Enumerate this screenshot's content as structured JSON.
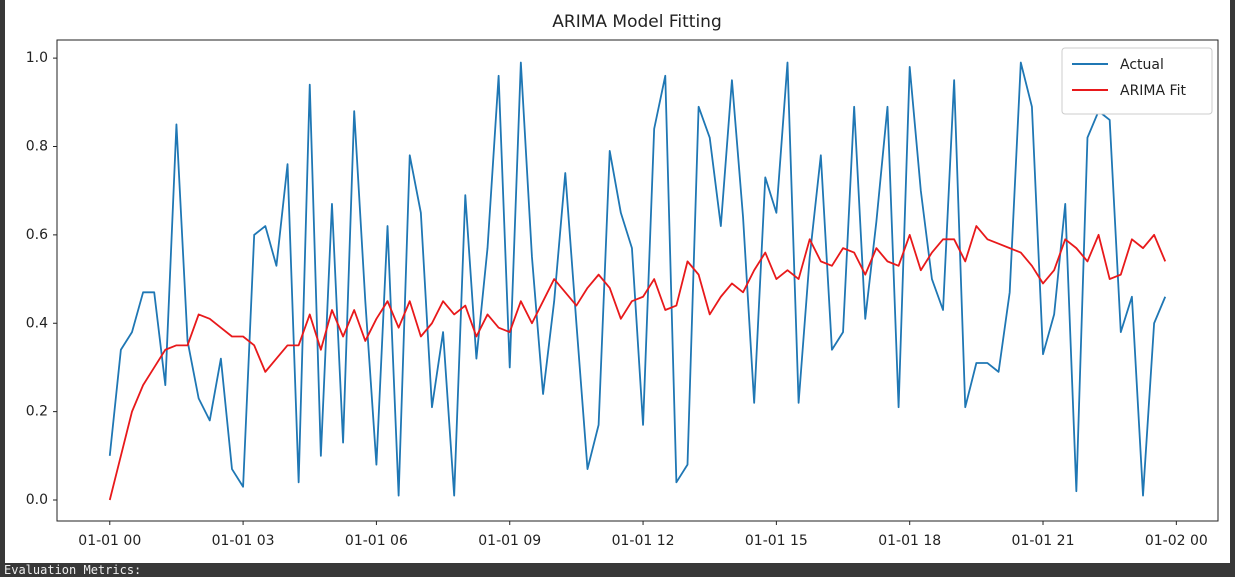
{
  "chart_data": {
    "type": "line",
    "title": "ARIMA Model Fitting",
    "x": [
      0,
      0.25,
      0.5,
      0.75,
      1,
      1.25,
      1.5,
      1.75,
      2,
      2.25,
      2.5,
      2.75,
      3,
      3.25,
      3.5,
      3.75,
      4,
      4.25,
      4.5,
      4.75,
      5,
      5.25,
      5.5,
      5.75,
      6,
      6.25,
      6.5,
      6.75,
      7,
      7.25,
      7.5,
      7.75,
      8,
      8.25,
      8.5,
      8.75,
      9,
      9.25,
      9.5,
      9.75,
      10,
      10.25,
      10.5,
      10.75,
      11,
      11.25,
      11.5,
      11.75,
      12,
      12.25,
      12.5,
      12.75,
      13,
      13.25,
      13.5,
      13.75,
      14,
      14.25,
      14.5,
      14.75,
      15,
      15.25,
      15.5,
      15.75,
      16,
      16.25,
      16.5,
      16.75,
      17,
      17.25,
      17.5,
      17.75,
      18,
      18.25,
      18.5,
      18.75,
      19,
      19.25,
      19.5,
      19.75,
      20,
      20.25,
      20.5,
      20.75,
      21,
      21.25,
      21.5,
      21.75,
      22,
      22.25,
      22.5,
      22.75,
      23,
      23.25,
      23.5,
      23.75
    ],
    "series": [
      {
        "name": "Actual",
        "color": "#1f77b4",
        "values": [
          0.1,
          0.34,
          0.38,
          0.47,
          0.47,
          0.26,
          0.85,
          0.36,
          0.23,
          0.18,
          0.32,
          0.07,
          0.03,
          0.6,
          0.62,
          0.53,
          0.76,
          0.04,
          0.94,
          0.1,
          0.67,
          0.13,
          0.88,
          0.45,
          0.08,
          0.62,
          0.01,
          0.78,
          0.65,
          0.21,
          0.38,
          0.01,
          0.69,
          0.32,
          0.57,
          0.96,
          0.3,
          0.99,
          0.55,
          0.24,
          0.45,
          0.74,
          0.4,
          0.07,
          0.17,
          0.79,
          0.65,
          0.57,
          0.17,
          0.84,
          0.96,
          0.04,
          0.08,
          0.89,
          0.82,
          0.62,
          0.95,
          0.64,
          0.22,
          0.73,
          0.65,
          0.99,
          0.22,
          0.55,
          0.78,
          0.34,
          0.38,
          0.89,
          0.41,
          0.63,
          0.89,
          0.21,
          0.98,
          0.7,
          0.5,
          0.43,
          0.95,
          0.21,
          0.31,
          0.31,
          0.29,
          0.47,
          0.99,
          0.89,
          0.33,
          0.42,
          0.67,
          0.02,
          0.82,
          0.88,
          0.86,
          0.38,
          0.46,
          0.01,
          0.4,
          0.46
        ]
      },
      {
        "name": "ARIMA Fit",
        "color": "#e8191b",
        "values": [
          0.0,
          0.1,
          0.2,
          0.26,
          0.3,
          0.34,
          0.35,
          0.35,
          0.42,
          0.41,
          0.39,
          0.37,
          0.37,
          0.35,
          0.29,
          0.32,
          0.35,
          0.35,
          0.42,
          0.34,
          0.43,
          0.37,
          0.43,
          0.36,
          0.41,
          0.45,
          0.39,
          0.45,
          0.37,
          0.4,
          0.45,
          0.42,
          0.44,
          0.37,
          0.42,
          0.39,
          0.38,
          0.45,
          0.4,
          0.45,
          0.5,
          0.47,
          0.44,
          0.48,
          0.51,
          0.48,
          0.41,
          0.45,
          0.46,
          0.5,
          0.43,
          0.44,
          0.54,
          0.51,
          0.42,
          0.46,
          0.49,
          0.47,
          0.52,
          0.56,
          0.5,
          0.52,
          0.5,
          0.59,
          0.54,
          0.53,
          0.57,
          0.56,
          0.51,
          0.57,
          0.54,
          0.53,
          0.6,
          0.52,
          0.56,
          0.59,
          0.59,
          0.54,
          0.62,
          0.59,
          0.58,
          0.57,
          0.56,
          0.53,
          0.49,
          0.52,
          0.59,
          0.57,
          0.54,
          0.6,
          0.5,
          0.51,
          0.59,
          0.57,
          0.6,
          0.54
        ]
      }
    ],
    "xlim": [
      -1.1875,
      24.9375
    ],
    "xticks": [
      {
        "value": 0,
        "label": "01-01 00"
      },
      {
        "value": 3,
        "label": "01-01 03"
      },
      {
        "value": 6,
        "label": "01-01 06"
      },
      {
        "value": 9,
        "label": "01-01 09"
      },
      {
        "value": 12,
        "label": "01-01 12"
      },
      {
        "value": 15,
        "label": "01-01 15"
      },
      {
        "value": 18,
        "label": "01-01 18"
      },
      {
        "value": 21,
        "label": "01-01 21"
      },
      {
        "value": 24,
        "label": "01-02 00"
      }
    ],
    "ylim": [
      -0.0475,
      1.041
    ],
    "yticks": [
      {
        "value": 0,
        "label": "0.0"
      },
      0.2,
      0.4,
      0.6,
      0.8,
      {
        "value": 1,
        "label": "1.0"
      }
    ],
    "legend": "upper right"
  },
  "output_text": "Evaluation Metrics:"
}
